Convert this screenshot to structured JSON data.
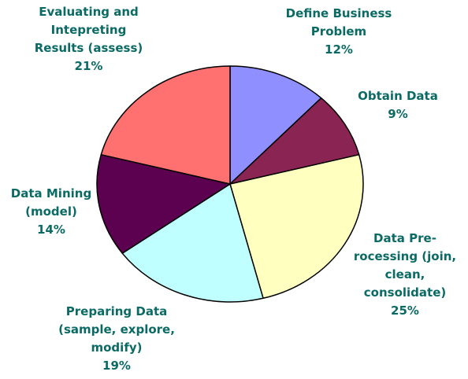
{
  "chart_data": {
    "type": "pie",
    "title": "",
    "slices": [
      {
        "lines": [
          "Define Business",
          "Problem"
        ],
        "pct_label": "12%",
        "value": 12,
        "color": "#8f8fff"
      },
      {
        "lines": [
          "Obtain Data"
        ],
        "pct_label": "9%",
        "value": 9,
        "color": "#8a2452"
      },
      {
        "lines": [
          "Data Pre-",
          "rocessing (join,",
          "clean,",
          "consolidate)"
        ],
        "pct_label": "25%",
        "value": 25,
        "color": "#ffffc0"
      },
      {
        "lines": [
          "Preparing Data",
          "(sample, explore,",
          "modify)"
        ],
        "pct_label": "19%",
        "value": 19,
        "color": "#c0ffff"
      },
      {
        "lines": [
          "Data Mining",
          "(model)"
        ],
        "pct_label": "14%",
        "value": 14,
        "color": "#5c0050"
      },
      {
        "lines": [
          "Evaluating and",
          "Intepreting",
          "Results (assess)"
        ],
        "pct_label": "21%",
        "value": 21,
        "color": "#ff7070"
      }
    ],
    "legend": "none",
    "label_color": "#0b6b64"
  }
}
